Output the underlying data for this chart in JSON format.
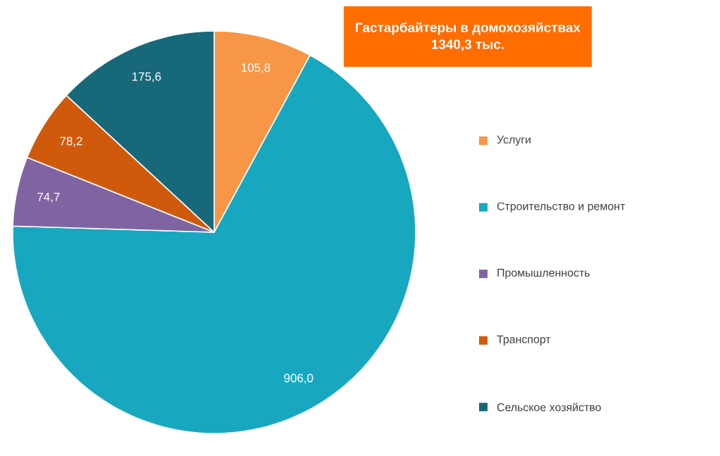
{
  "chart_data": {
    "type": "pie",
    "title": "Гастарбайтеры в домохозяйствах\n1340,3 тыс.",
    "categories": [
      "Услуги",
      "Строительство и ремонт",
      "Промышленность",
      "Транспорт",
      "Сельское хозяйство"
    ],
    "values": [
      105.8,
      906.0,
      74.7,
      78.2,
      175.6
    ],
    "value_labels": [
      "105,8",
      "906,0",
      "74,7",
      "78,2",
      "175,6"
    ],
    "colors": [
      "#f79646",
      "#17a8c0",
      "#8064a2",
      "#d05a0c",
      "#17697a"
    ],
    "legend": "right"
  }
}
